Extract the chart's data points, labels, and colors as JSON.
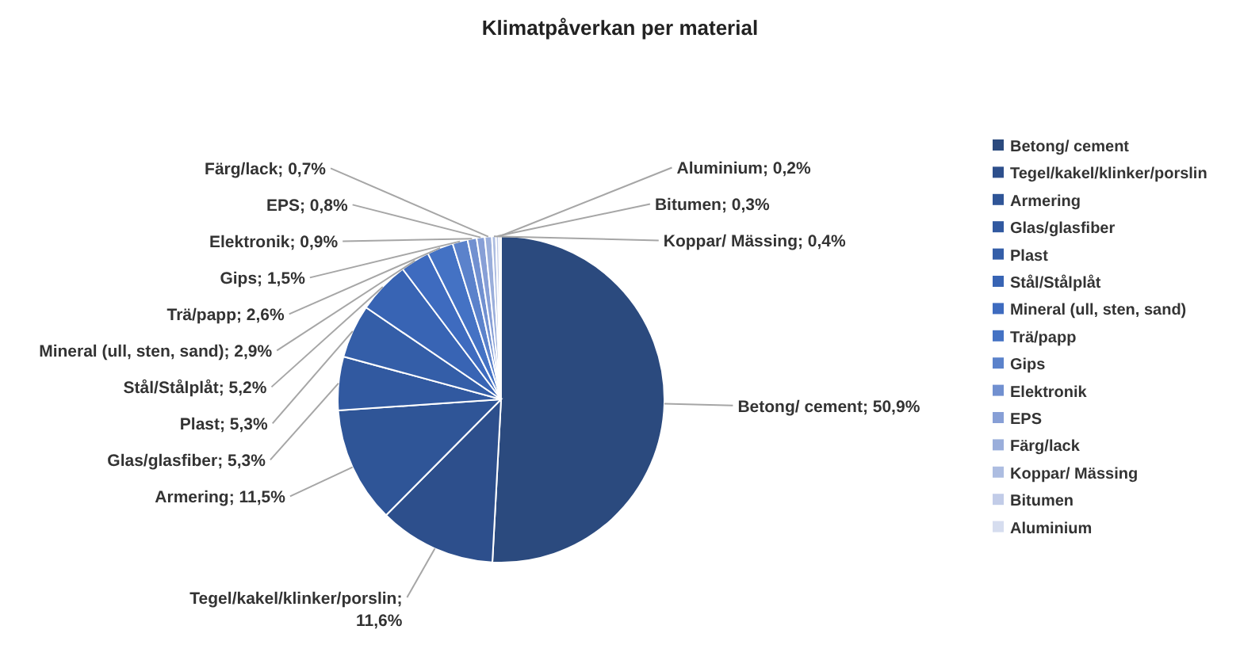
{
  "chart_data": {
    "type": "pie",
    "title": "Klimatpåverkan per material",
    "categories": [
      "Betong/ cement",
      "Tegel/kakel/klinker/porslin",
      "Armering",
      "Glas/glasfiber",
      "Plast",
      "Stål/Stålplåt",
      "Mineral (ull, sten, sand)",
      "Trä/papp",
      "Gips",
      "Elektronik",
      "EPS",
      "Färg/lack",
      "Koppar/ Mässing",
      "Bitumen",
      "Aluminium"
    ],
    "values": [
      50.9,
      11.6,
      11.5,
      5.3,
      5.3,
      5.2,
      2.9,
      2.6,
      1.5,
      0.9,
      0.8,
      0.7,
      0.4,
      0.3,
      0.2
    ],
    "value_labels": [
      "Betong/ cement; 50,9%",
      "Tegel/kakel/klinker/porslin; 11,6%",
      "Armering; 11,5%",
      "Glas/glasfiber; 5,3%",
      "Plast; 5,3%",
      "Stål/Stålplåt; 5,2%",
      "Mineral (ull, sten, sand); 2,9%",
      "Trä/papp; 2,6%",
      "Gips; 1,5%",
      "Elektronik; 0,9%",
      "EPS; 0,8%",
      "Färg/lack; 0,7%",
      "Koppar/ Mässing; 0,4%",
      "Bitumen; 0,3%",
      "Aluminium; 0,2%"
    ],
    "colors": [
      "#2b4a7e",
      "#2d4f8c",
      "#2f5597",
      "#3159a0",
      "#345ea8",
      "#3864b4",
      "#3e6bbf",
      "#4472c4",
      "#5b82cb",
      "#7190d0",
      "#879fd6",
      "#9aaedb",
      "#adbde1",
      "#c2cce8",
      "#d6ddef"
    ],
    "legend": "right"
  }
}
